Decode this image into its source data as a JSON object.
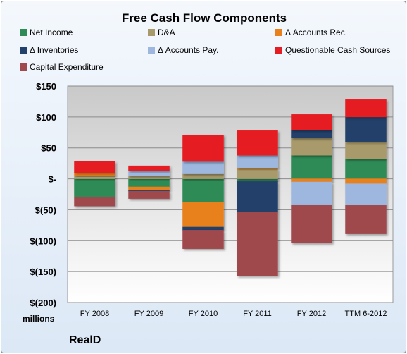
{
  "chart_data": {
    "type": "bar",
    "stacked": true,
    "title": "Free Cash Flow Components",
    "xlabel": "",
    "ylabel": "",
    "unit_label": "millions",
    "company": "RealD",
    "categories": [
      "FY 2008",
      "FY 2009",
      "FY 2010",
      "FY 2011",
      "FY 2012",
      "TTM 6-2012"
    ],
    "ylim": [
      -200,
      150
    ],
    "y_ticks": [
      150,
      100,
      50,
      0,
      -50,
      -100,
      -150,
      -200
    ],
    "y_tick_labels": [
      "$150",
      "$100",
      "$50",
      "$-",
      "$(50)",
      "$(100)",
      "$(150)",
      "$(200)"
    ],
    "grid": true,
    "legend_position": "top",
    "series": [
      {
        "name": "Net Income",
        "color": "#2e8b57",
        "values": [
          -30,
          -13,
          -38,
          -4,
          38,
          32
        ]
      },
      {
        "name": "D&A",
        "color": "#a89a6a",
        "values": [
          5,
          5,
          8,
          16,
          28,
          28
        ]
      },
      {
        "name": "Δ Accounts Rec.",
        "color": "#e8801e",
        "values": [
          5,
          -6,
          -40,
          2,
          -5,
          -8
        ]
      },
      {
        "name": "Δ Inventories",
        "color": "#24416b",
        "values": [
          0,
          -1,
          -5,
          -50,
          13,
          40
        ]
      },
      {
        "name": "Δ Accounts Pay.",
        "color": "#9db7df",
        "values": [
          0,
          8,
          20,
          20,
          -37,
          -35
        ]
      },
      {
        "name": "Questionable Cash Sources",
        "color": "#e51c23",
        "values": [
          18,
          8,
          43,
          40,
          25,
          28
        ]
      },
      {
        "name": "Capital Expenditure",
        "color": "#a04a4e",
        "values": [
          -14,
          -12,
          -30,
          -103,
          -62,
          -46
        ]
      }
    ]
  }
}
